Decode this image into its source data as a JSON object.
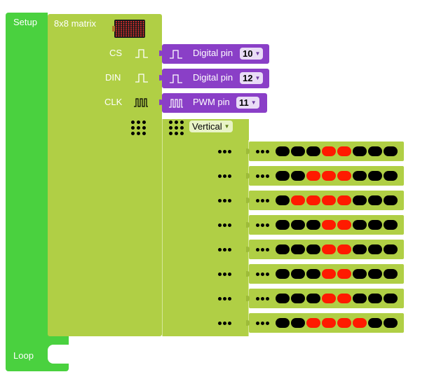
{
  "setup": {
    "label": "Setup"
  },
  "loop": {
    "label": "Loop"
  },
  "matrix": {
    "title": "8x8 matrix",
    "image_icon": "led-matrix-icon",
    "pins": [
      {
        "label": "CS",
        "signal_icon": "pulse-icon",
        "type_label": "Digital pin",
        "value": "10"
      },
      {
        "label": "DIN",
        "signal_icon": "pulse-icon",
        "type_label": "Digital pin",
        "value": "12"
      },
      {
        "label": "CLK",
        "signal_icon": "pulse-train-icon",
        "type_label": "PWM pin",
        "value": "11"
      }
    ],
    "orientation": {
      "value": "Vertical"
    },
    "rows": [
      [
        0,
        0,
        0,
        1,
        1,
        0,
        0,
        0
      ],
      [
        0,
        0,
        1,
        1,
        1,
        0,
        0,
        0
      ],
      [
        0,
        1,
        1,
        1,
        1,
        0,
        0,
        0
      ],
      [
        0,
        0,
        0,
        1,
        1,
        0,
        0,
        0
      ],
      [
        0,
        0,
        0,
        1,
        1,
        0,
        0,
        0
      ],
      [
        0,
        0,
        0,
        1,
        1,
        0,
        0,
        0
      ],
      [
        0,
        0,
        0,
        1,
        1,
        0,
        0,
        0
      ],
      [
        0,
        0,
        1,
        1,
        1,
        1,
        0,
        0
      ]
    ]
  },
  "colors": {
    "setup_block": "#4ad13f",
    "matrix_block": "#b0cf45",
    "pin_block": "#8a3fc7",
    "led_on": "#ff1a00",
    "led_off": "#000000"
  }
}
